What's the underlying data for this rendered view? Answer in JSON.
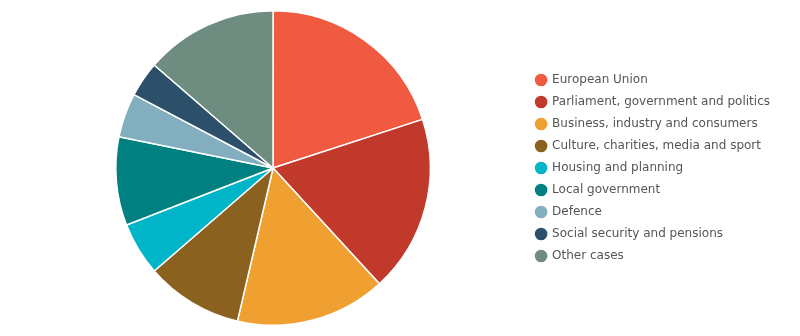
{
  "chart_data": {
    "type": "pie",
    "categories": [
      "European Union",
      "Parliament, government and politics",
      "Business, industry and consumers",
      "Culture, charities, media and sport",
      "Housing and planning",
      "Local government",
      "Defence",
      "Social security and pensions",
      "Other cases"
    ],
    "values": [
      22,
      20,
      17,
      11,
      6,
      10,
      5,
      4,
      15
    ],
    "colors": [
      "#f05a40",
      "#c0392b",
      "#f0a030",
      "#8b6120",
      "#00b5c8",
      "#008080",
      "#82aec0",
      "#2c4f6a",
      "#6e8c80"
    ],
    "legend": "right"
  }
}
